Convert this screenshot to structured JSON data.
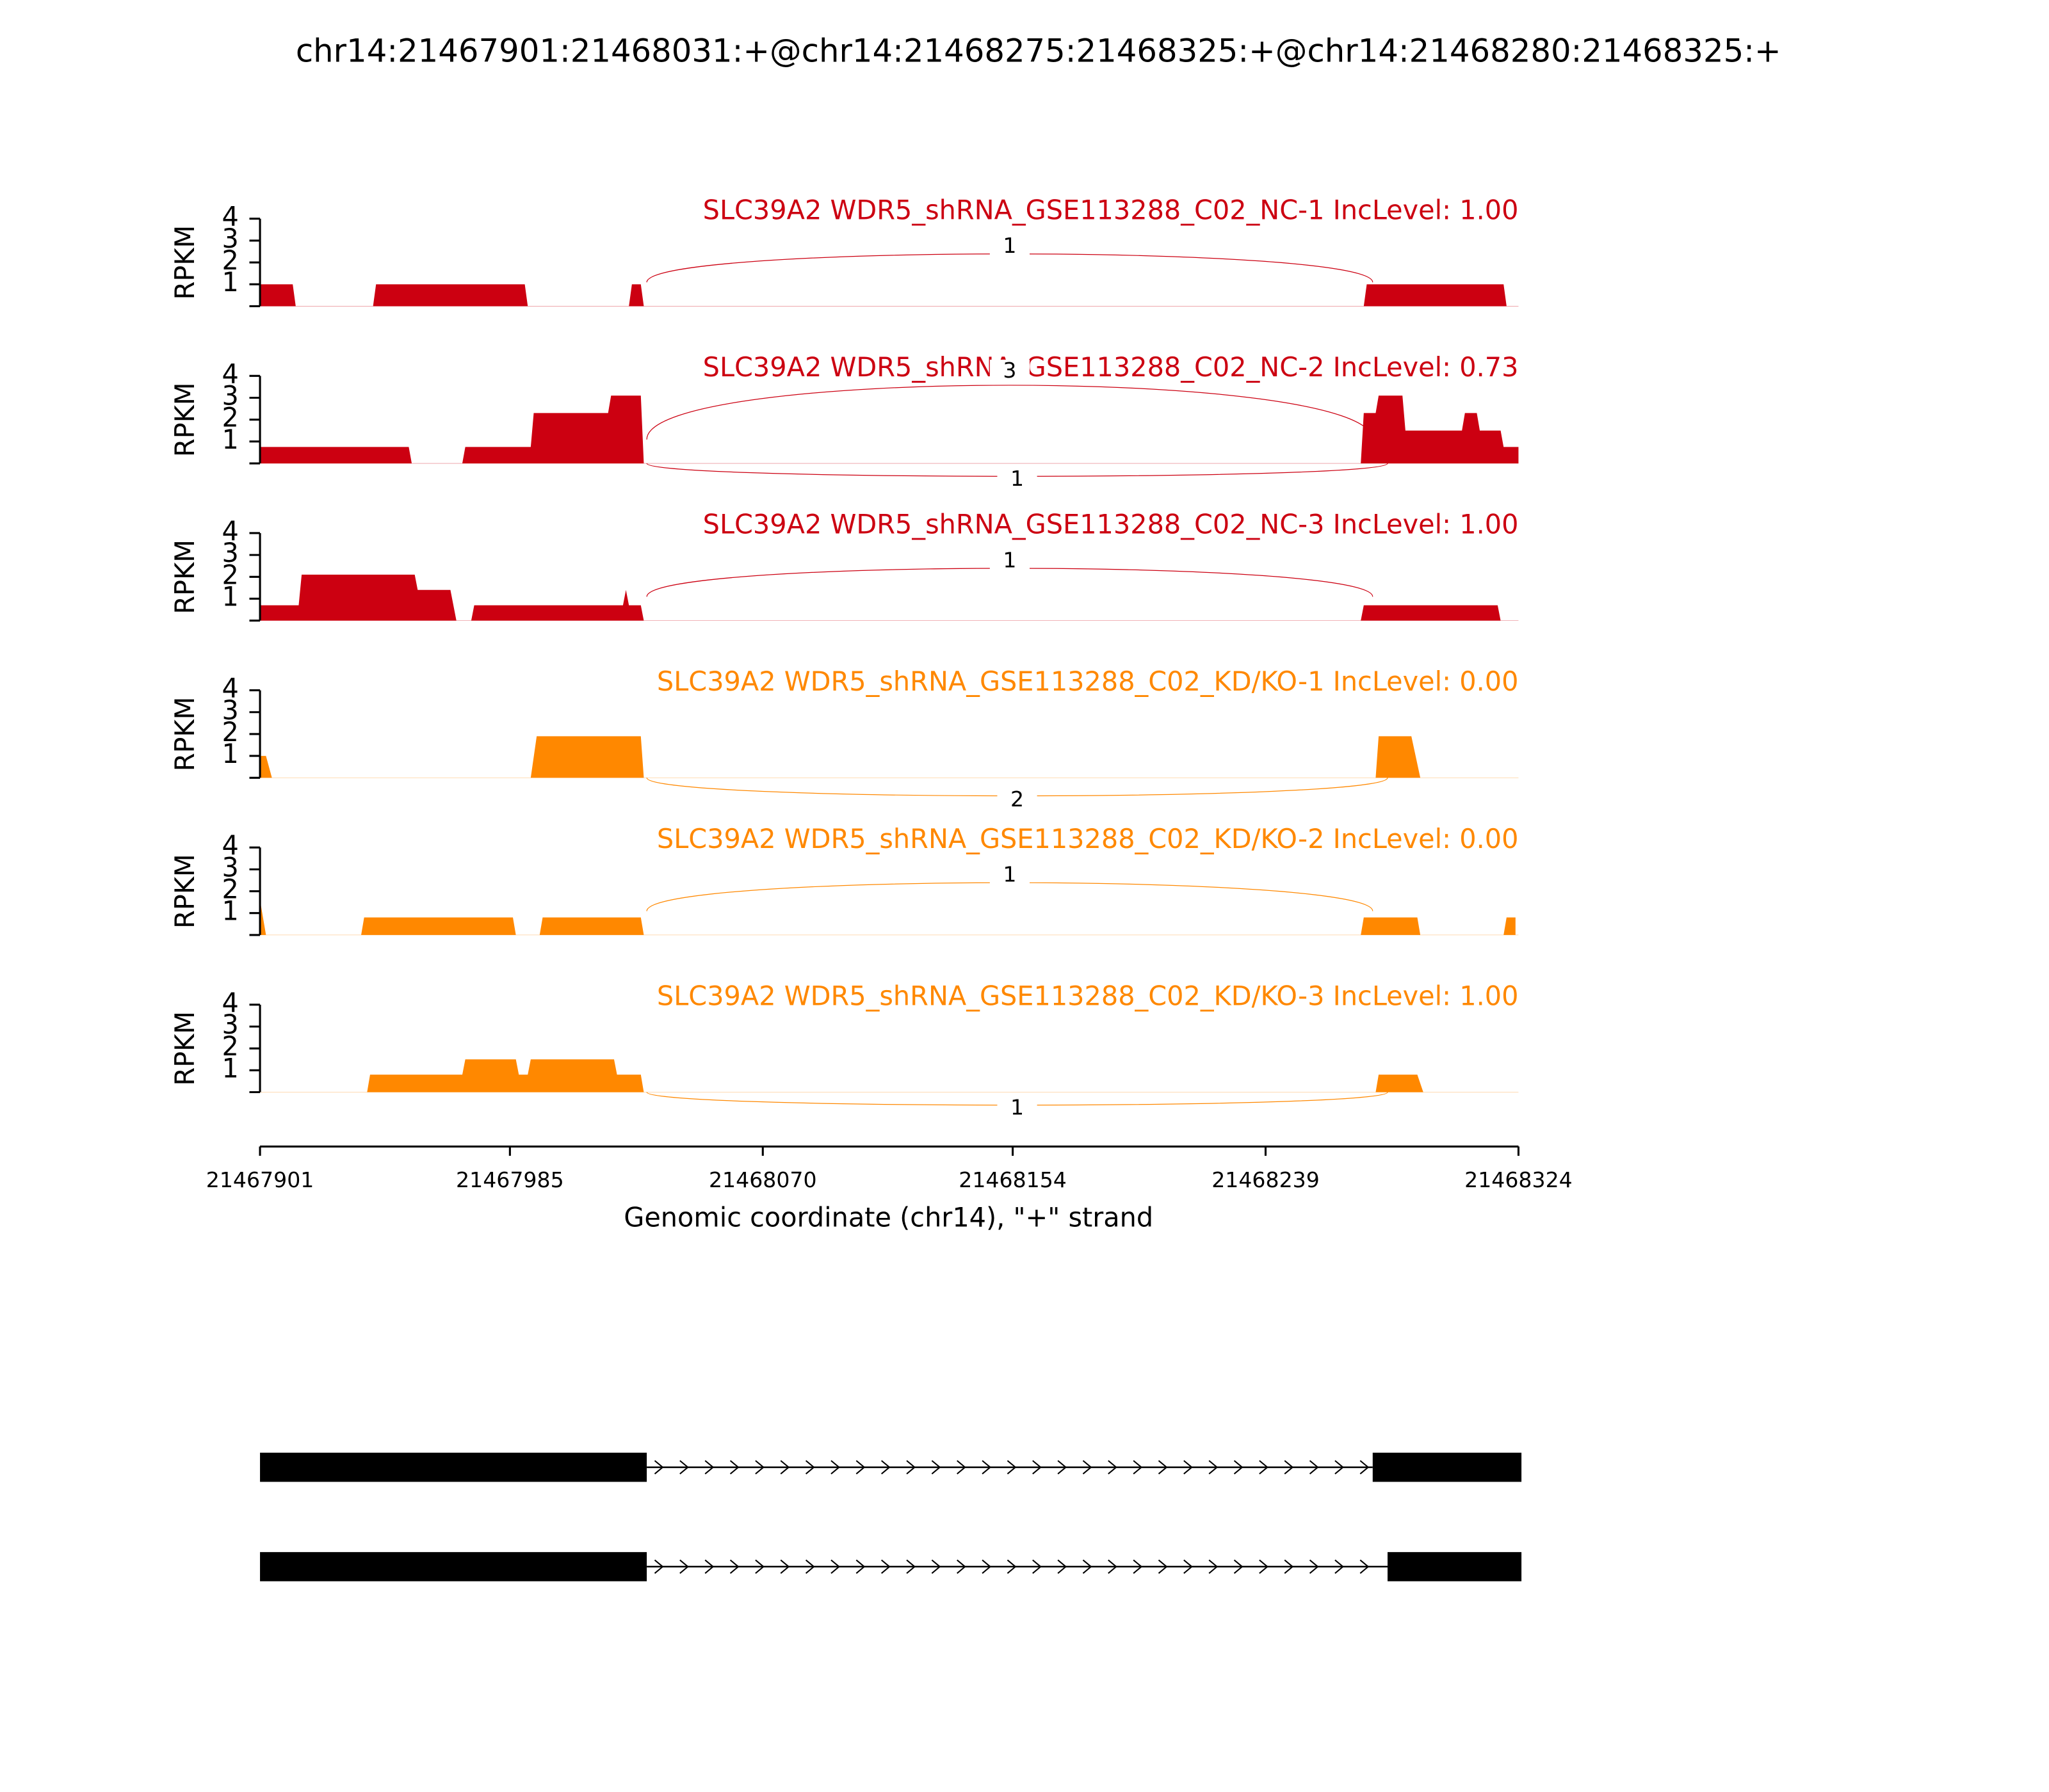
{
  "chart_data": {
    "type": "sashimi",
    "title": "chr14:21467901:21468031:+@chr14:21468275:21468325:+@chr14:21468280:21468325:+",
    "xlabel": "Genomic coordinate (chr14), \"+\" strand",
    "ylabel": "RPKM",
    "xlim": [
      21467901,
      21468324
    ],
    "xticks": [
      21467901,
      21467985,
      21468070,
      21468154,
      21468239,
      21468324
    ],
    "ylim": [
      0,
      4
    ],
    "yticks": [
      1,
      2,
      3,
      4
    ],
    "tracks": [
      {
        "label": "SLC39A2 WDR5_shRNA_GSE113288_C02_NC-1 IncLevel: 1.00",
        "color": "#cc0011",
        "x": [
          21467901,
          21467912,
          21467913,
          21467939,
          21467940,
          21467990,
          21467991,
          21468025,
          21468026,
          21468029,
          21468030,
          21468272,
          21468273,
          21468319,
          21468320
        ],
        "values": [
          1,
          1,
          0,
          0,
          1,
          1,
          0,
          0,
          1,
          1,
          0,
          0,
          1,
          1,
          0
        ],
        "junctions": [
          {
            "start": 21468031,
            "end": 21468275,
            "count": 1,
            "side": "above"
          }
        ]
      },
      {
        "label": "SLC39A2 WDR5_shRNA_GSE113288_C02_NC-2 IncLevel: 0.73",
        "color": "#cc0011",
        "x": [
          21467901,
          21467951,
          21467952,
          21467969,
          21467970,
          21467992,
          21467993,
          21468018,
          21468019,
          21468029,
          21468030,
          21468271,
          21468272,
          21468276,
          21468277,
          21468285,
          21468286,
          21468305,
          21468306,
          21468310,
          21468311,
          21468318,
          21468319,
          21468324
        ],
        "values": [
          0.75,
          0.75,
          0,
          0,
          0.75,
          0.75,
          2.3,
          2.3,
          3.1,
          3.1,
          0,
          0,
          2.3,
          2.3,
          3.1,
          3.1,
          1.5,
          1.5,
          2.3,
          2.3,
          1.5,
          1.5,
          0.75,
          0.75
        ],
        "junctions": [
          {
            "start": 21468031,
            "end": 21468275,
            "count": 3,
            "side": "above"
          },
          {
            "start": 21468031,
            "end": 21468280,
            "count": 1,
            "side": "below"
          }
        ]
      },
      {
        "label": "SLC39A2 WDR5_shRNA_GSE113288_C02_NC-3 IncLevel: 1.00",
        "color": "#cc0011",
        "x": [
          21467901,
          21467914,
          21467915,
          21467953,
          21467954,
          21467965,
          21467967,
          21467972,
          21467973,
          21468023,
          21468024,
          21468025,
          21468029,
          21468030,
          21468271,
          21468272,
          21468317,
          21468318
        ],
        "values": [
          0.7,
          0.7,
          2.1,
          2.1,
          1.4,
          1.4,
          0,
          0,
          0.7,
          0.7,
          1.4,
          0.7,
          0.7,
          0,
          0,
          0.7,
          0.7,
          0
        ],
        "junctions": [
          {
            "start": 21468031,
            "end": 21468275,
            "count": 1,
            "side": "above"
          }
        ]
      },
      {
        "label": "SLC39A2 WDR5_shRNA_GSE113288_C02_KD/KO-1 IncLevel: 0.00",
        "color": "#ff8800",
        "x": [
          21467901,
          21467903,
          21467905,
          21467992,
          21467994,
          21468029,
          21468030,
          21468276,
          21468277,
          21468288,
          21468291
        ],
        "values": [
          1,
          1,
          0,
          0,
          1.9,
          1.9,
          0,
          0,
          1.9,
          1.9,
          0
        ],
        "junctions": [
          {
            "start": 21468031,
            "end": 21468280,
            "count": 2,
            "side": "below"
          }
        ]
      },
      {
        "label": "SLC39A2 WDR5_shRNA_GSE113288_C02_KD/KO-2 IncLevel: 0.00",
        "color": "#ff8800",
        "x": [
          21467901,
          21467903,
          21467935,
          21467936,
          21467986,
          21467987,
          21467995,
          21467996,
          21468029,
          21468030,
          21468271,
          21468272,
          21468290,
          21468291,
          21468319,
          21468320,
          21468323
        ],
        "values": [
          1.6,
          0,
          0,
          0.8,
          0.8,
          0,
          0,
          0.8,
          0.8,
          0,
          0,
          0.8,
          0.8,
          0,
          0,
          0.8,
          0.8
        ],
        "junctions": [
          {
            "start": 21468031,
            "end": 21468275,
            "count": 1,
            "side": "above"
          }
        ]
      },
      {
        "label": "SLC39A2 WDR5_shRNA_GSE113288_C02_KD/KO-3 IncLevel: 1.00",
        "color": "#ff8800",
        "x": [
          21467937,
          21467938,
          21467969,
          21467970,
          21467987,
          21467988,
          21467991,
          21467992,
          21468020,
          21468021,
          21468029,
          21468030,
          21468276,
          21468277,
          21468290,
          21468292
        ],
        "values": [
          0,
          0.8,
          0.8,
          1.5,
          1.5,
          0.8,
          0.8,
          1.5,
          1.5,
          0.8,
          0.8,
          0,
          0,
          0.8,
          0.8,
          0
        ],
        "junctions": [
          {
            "start": 21468031,
            "end": 21468280,
            "count": 1,
            "side": "below"
          }
        ]
      }
    ],
    "transcripts": [
      {
        "exons": [
          [
            21467901,
            21468031
          ],
          [
            21468275,
            21468325
          ]
        ]
      },
      {
        "exons": [
          [
            21467901,
            21468031
          ],
          [
            21468280,
            21468325
          ]
        ]
      }
    ]
  }
}
